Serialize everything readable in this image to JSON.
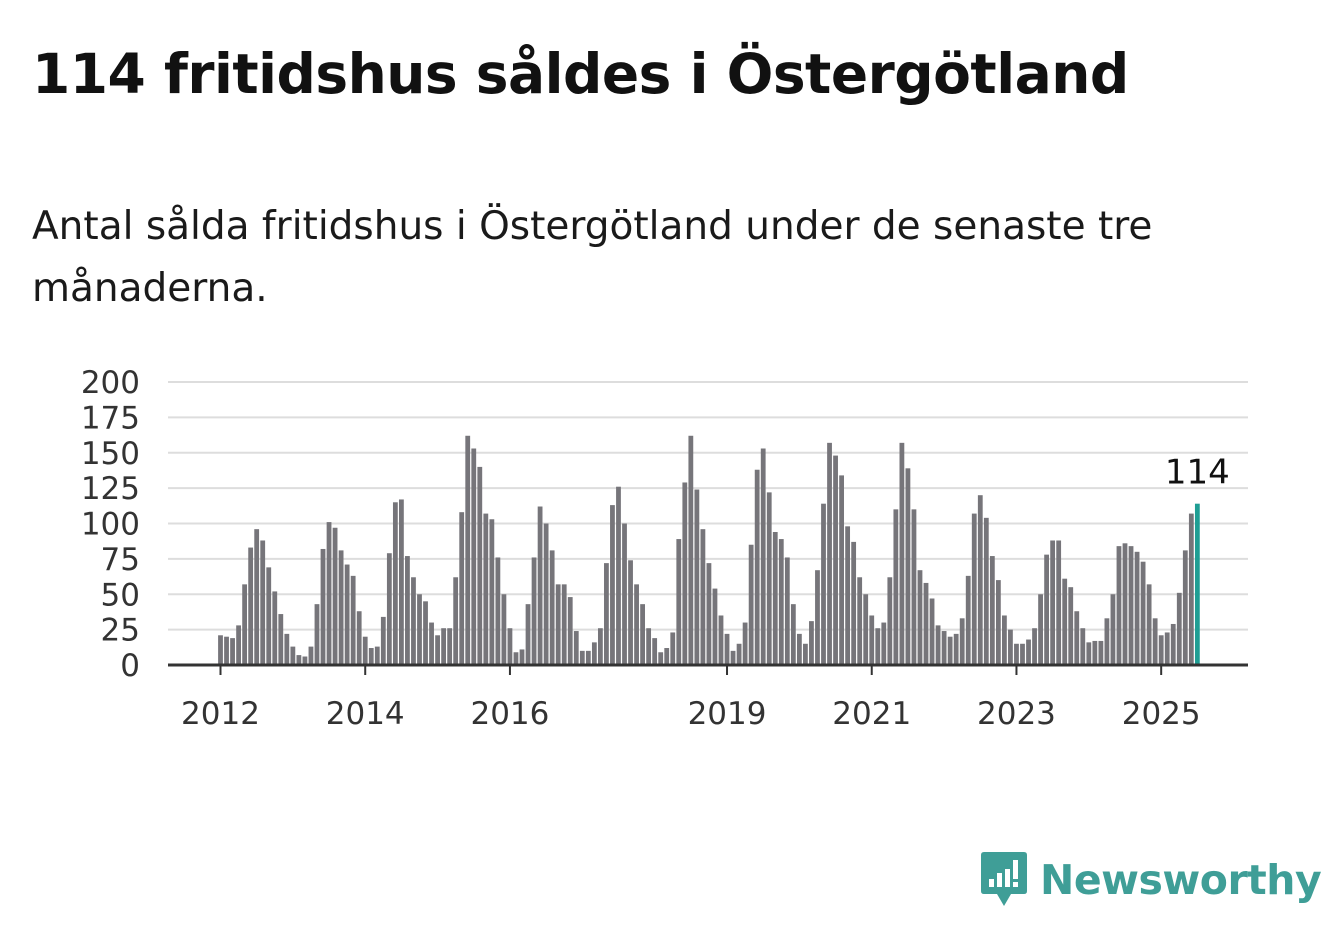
{
  "title": "114 fritidshus såldes i Östergötland",
  "subtitle": "Antal sålda fritidshus i Östergötland under de senaste tre månaderna.",
  "brand": "Newsworthy",
  "colors": {
    "bar": "#76757a",
    "highlight": "#1f9e94",
    "grid": "#dddddd",
    "axis": "#333333",
    "brand": "#3f9e97"
  },
  "chart_data": {
    "type": "bar",
    "x_start": "2012-01",
    "x_end": "2025-06",
    "x_tick_labels": [
      "2012",
      "2014",
      "2016",
      "2019",
      "2021",
      "2023",
      "2025"
    ],
    "y_tick_labels": [
      "0",
      "25",
      "50",
      "75",
      "100",
      "125",
      "150",
      "175",
      "200"
    ],
    "ylim": [
      0,
      200
    ],
    "grid": true,
    "values": [
      21,
      20,
      19,
      28,
      57,
      83,
      96,
      88,
      69,
      52,
      36,
      22,
      13,
      7,
      6,
      13,
      43,
      82,
      101,
      97,
      81,
      71,
      63,
      38,
      20,
      12,
      13,
      34,
      79,
      115,
      117,
      77,
      62,
      50,
      45,
      30,
      21,
      26,
      26,
      62,
      108,
      162,
      153,
      140,
      107,
      103,
      76,
      50,
      26,
      9,
      11,
      43,
      76,
      112,
      100,
      81,
      57,
      57,
      48,
      24,
      10,
      10,
      16,
      26,
      72,
      113,
      126,
      100,
      74,
      57,
      43,
      26,
      19,
      9,
      12,
      23,
      89,
      129,
      162,
      124,
      96,
      72,
      54,
      35,
      22,
      10,
      15,
      30,
      85,
      138,
      153,
      122,
      94,
      89,
      76,
      43,
      22,
      15,
      31,
      67,
      114,
      157,
      148,
      134,
      98,
      87,
      62,
      50,
      35,
      26,
      30,
      62,
      110,
      157,
      139,
      110,
      67,
      58,
      47,
      28,
      24,
      20,
      22,
      33,
      63,
      107,
      120,
      104,
      77,
      60,
      35,
      25,
      15,
      15,
      18,
      26,
      50,
      78,
      88,
      88,
      61,
      55,
      38,
      26,
      16,
      17,
      17,
      33,
      50,
      84,
      86,
      84,
      80,
      73,
      57,
      33,
      21,
      23,
      29,
      51,
      81,
      107,
      114
    ],
    "highlight_label": "114"
  }
}
